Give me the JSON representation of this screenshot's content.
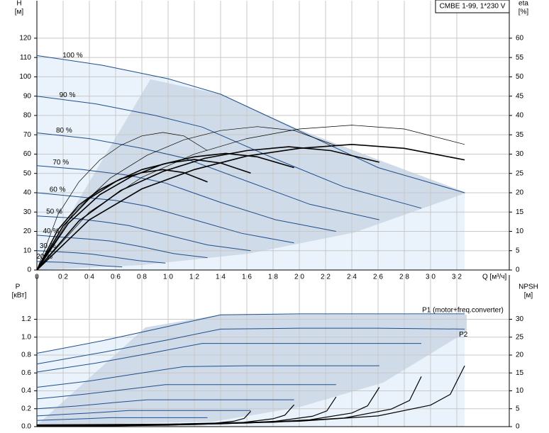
{
  "chart_data": [
    {
      "type": "line",
      "title": "CMBE 1-99, 1*230 V",
      "y_label": "H",
      "y_unit": "[м]",
      "y2_label": "eta",
      "y2_unit": "[%]",
      "x_label": "Q [м³/ч]",
      "xlim": [
        0,
        3.6
      ],
      "xticks": [
        0,
        {
          "value": 0.2,
          "label": "0,2"
        },
        {
          "value": 0.4,
          "label": "0,4"
        },
        {
          "value": 0.6,
          "label": "0,6"
        },
        {
          "value": 0.8,
          "label": "0,8"
        },
        {
          "value": 1.0,
          "label": "1,0"
        },
        {
          "value": 1.2,
          "label": "1,2"
        },
        {
          "value": 1.4,
          "label": "1,4"
        },
        {
          "value": 1.6,
          "label": "1,6"
        },
        {
          "value": 1.8,
          "label": "1,8"
        },
        {
          "value": 2.0,
          "label": "2,0"
        },
        {
          "value": 2.2,
          "label": "2,2"
        },
        {
          "value": 2.4,
          "label": "2,4"
        },
        {
          "value": 2.6,
          "label": "2,6"
        },
        {
          "value": 2.8,
          "label": "2,8"
        },
        {
          "value": 3.0,
          "label": "3,0"
        },
        {
          "value": 3.2,
          "label": "3,2"
        }
      ],
      "ylim": [
        0,
        135
      ],
      "yticks": [
        0,
        10,
        20,
        30,
        40,
        50,
        60,
        70,
        80,
        90,
        100,
        110,
        120
      ],
      "y2lim": [
        0,
        67.5
      ],
      "y2ticks": [
        0,
        5,
        10,
        15,
        20,
        25,
        30,
        35,
        40,
        45,
        50,
        55,
        60
      ],
      "grid": true,
      "series": [
        {
          "name": "100 %",
          "color": "#1f4e8c",
          "width": 1,
          "x": [
            0,
            0.5,
            1.0,
            1.4,
            2.0,
            2.6,
            3.26
          ],
          "values": [
            111,
            106,
            99,
            91,
            72,
            53,
            40
          ]
        },
        {
          "name": "90 %",
          "color": "#1f4e8c",
          "width": 1,
          "x": [
            0,
            0.45,
            0.9,
            1.26,
            1.8,
            2.34,
            2.93
          ],
          "values": [
            90,
            86,
            80,
            74,
            58,
            43,
            32
          ]
        },
        {
          "name": "80 %",
          "color": "#1f4e8c",
          "width": 1,
          "x": [
            0,
            0.4,
            0.8,
            1.12,
            1.6,
            2.08,
            2.61
          ],
          "values": [
            71,
            68,
            63,
            58,
            46,
            34,
            26
          ]
        },
        {
          "name": "70 %",
          "color": "#1f4e8c",
          "width": 1,
          "x": [
            0,
            0.35,
            0.7,
            0.98,
            1.4,
            1.82,
            2.28
          ],
          "values": [
            54,
            52,
            49,
            45,
            35,
            26,
            20
          ]
        },
        {
          "name": "60 %",
          "color": "#1f4e8c",
          "width": 1,
          "x": [
            0,
            0.3,
            0.6,
            0.84,
            1.2,
            1.56,
            1.96
          ],
          "values": [
            40,
            38,
            36,
            33,
            26,
            19,
            14
          ]
        },
        {
          "name": "50 %",
          "color": "#1f4e8c",
          "width": 1,
          "x": [
            0,
            0.25,
            0.5,
            0.7,
            1.0,
            1.3,
            1.63
          ],
          "values": [
            28,
            27,
            25,
            23,
            18,
            13,
            10
          ]
        },
        {
          "name": "40 %",
          "color": "#1f4e8c",
          "width": 1,
          "x": [
            0,
            0.2,
            0.4,
            0.56,
            0.8,
            1.04,
            1.3
          ],
          "values": [
            18,
            17,
            16,
            15,
            12,
            8.5,
            6.4
          ]
        },
        {
          "name": "30 %",
          "color": "#1f4e8c",
          "width": 1,
          "x": [
            0,
            0.15,
            0.3,
            0.42,
            0.6,
            0.78,
            0.98
          ],
          "values": [
            10,
            9.5,
            8.9,
            8.2,
            6.5,
            4.8,
            3.6
          ]
        },
        {
          "name": "20 %",
          "color": "#1f4e8c",
          "width": 1,
          "x": [
            0,
            0.1,
            0.2,
            0.28,
            0.4,
            0.52,
            0.65
          ],
          "values": [
            4.4,
            4.2,
            4.0,
            3.6,
            2.9,
            2.1,
            1.6
          ]
        },
        {
          "color": "#000000",
          "width": 0.7,
          "axis": "y2",
          "x": [
            0,
            0.4,
            0.8,
            1.2,
            1.6,
            2.0,
            2.4,
            2.8,
            3.26
          ],
          "values": [
            0,
            15,
            24,
            30,
            34,
            36.5,
            37.5,
            36.5,
            32.5
          ]
        },
        {
          "color": "#000000",
          "width": 0.7,
          "axis": "y2",
          "x": [
            0,
            0.28,
            0.56,
            0.84,
            1.12,
            1.4,
            1.68,
            1.96,
            2.28
          ],
          "values": [
            0,
            14.9,
            23.8,
            29.7,
            33.7,
            36.1,
            37.1,
            36.1,
            32.2
          ]
        },
        {
          "color": "#000000",
          "width": 0.7,
          "axis": "y2",
          "x": [
            0,
            0.16,
            0.32,
            0.48,
            0.64,
            0.8,
            0.96,
            1.12,
            1.3
          ],
          "values": [
            0,
            14.3,
            22.8,
            28.5,
            32.3,
            34.7,
            35.6,
            34.7,
            30.9
          ]
        },
        {
          "color": "#000000",
          "width": 1.6,
          "axis": "y2",
          "x": [
            0,
            0.4,
            0.8,
            1.2,
            1.6,
            2.0,
            2.4,
            2.8,
            3.26
          ],
          "values": [
            0,
            13,
            21,
            26,
            29.5,
            31.5,
            32.5,
            31.5,
            28.5
          ]
        },
        {
          "color": "#000000",
          "width": 1.6,
          "axis": "y2",
          "x": [
            0,
            0.32,
            0.64,
            0.96,
            1.28,
            1.6,
            1.92,
            2.24,
            2.61
          ],
          "values": [
            0,
            12.7,
            20.6,
            25.5,
            28.9,
            30.9,
            31.9,
            30.9,
            27.9
          ]
        },
        {
          "color": "#000000",
          "width": 1.6,
          "axis": "y2",
          "x": [
            0,
            0.24,
            0.48,
            0.72,
            0.96,
            1.2,
            1.44,
            1.68,
            1.96
          ],
          "values": [
            0,
            12.1,
            19.5,
            24.2,
            27.4,
            29.3,
            30.2,
            29.3,
            26.5
          ]
        },
        {
          "color": "#000000",
          "width": 1.6,
          "axis": "y2",
          "x": [
            0,
            0.2,
            0.4,
            0.6,
            0.8,
            1.0,
            1.2,
            1.4,
            1.63
          ],
          "values": [
            0,
            11.4,
            18.5,
            22.9,
            26,
            27.7,
            28.6,
            27.7,
            25.1
          ]
        },
        {
          "color": "#000000",
          "width": 1.6,
          "axis": "y2",
          "x": [
            0,
            0.16,
            0.32,
            0.48,
            0.64,
            0.8,
            0.96,
            1.12,
            1.3
          ],
          "values": [
            0,
            10.4,
            16.8,
            20.8,
            23.6,
            25.2,
            26,
            25.2,
            22.8
          ]
        }
      ]
    },
    {
      "type": "line",
      "y_label": "P",
      "y_unit": "[кВт]",
      "y2_label": "NPSH",
      "y2_unit": "[м]",
      "xlim": [
        0,
        3.6
      ],
      "ylim": [
        0,
        1.6
      ],
      "yticks": [
        {
          "value": 0,
          "label": "0.0"
        },
        0.2,
        0.4,
        0.6,
        0.8,
        {
          "value": 1,
          "label": "1.0"
        },
        1.2
      ],
      "y2lim": [
        0,
        40
      ],
      "y2ticks": [
        0,
        5,
        10,
        15,
        20,
        25,
        30
      ],
      "grid": true,
      "series": [
        {
          "name": "P1 (motor+freq.converter)",
          "color": "#1f4e8c",
          "width": 1,
          "x": [
            0,
            0.5,
            1.0,
            1.4,
            2.0,
            2.6,
            3.26
          ],
          "values": [
            0.82,
            0.96,
            1.12,
            1.25,
            1.26,
            1.26,
            1.26
          ]
        },
        {
          "name": "P2",
          "color": "#1f4e8c",
          "width": 1,
          "x": [
            0,
            0.5,
            1.0,
            1.4,
            2.0,
            2.6,
            3.26
          ],
          "values": [
            0.7,
            0.83,
            0.97,
            1.09,
            1.1,
            1.1,
            1.09
          ]
        },
        {
          "color": "#1f4e8c",
          "width": 1,
          "x": [
            0,
            0.45,
            0.9,
            1.26,
            1.8,
            2.34,
            2.93
          ],
          "values": [
            0.61,
            0.71,
            0.83,
            0.93,
            0.93,
            0.93,
            0.93
          ]
        },
        {
          "color": "#1f4e8c",
          "width": 1,
          "x": [
            0,
            0.4,
            0.8,
            1.12,
            1.6,
            2.08,
            2.61
          ],
          "values": [
            0.44,
            0.51,
            0.6,
            0.67,
            0.68,
            0.68,
            0.68
          ]
        },
        {
          "color": "#1f4e8c",
          "width": 1,
          "x": [
            0,
            0.35,
            0.7,
            0.98,
            1.4,
            1.82,
            2.28
          ],
          "values": [
            0.31,
            0.36,
            0.42,
            0.47,
            0.47,
            0.47,
            0.47
          ]
        },
        {
          "color": "#1f4e8c",
          "width": 1,
          "x": [
            0,
            0.3,
            0.6,
            0.84,
            1.2,
            1.56,
            1.96
          ],
          "values": [
            0.2,
            0.23,
            0.27,
            0.3,
            0.3,
            0.3,
            0.3
          ]
        },
        {
          "color": "#1f4e8c",
          "width": 1,
          "x": [
            0,
            0.25,
            0.5,
            0.7,
            1.0,
            1.3,
            1.63
          ],
          "values": [
            0.12,
            0.14,
            0.16,
            0.18,
            0.18,
            0.18,
            0.18
          ]
        },
        {
          "color": "#1f4e8c",
          "width": 1,
          "x": [
            0,
            0.2,
            0.4,
            0.56,
            0.8,
            1.04,
            1.3
          ],
          "values": [
            0.07,
            0.08,
            0.09,
            0.1,
            0.1,
            0.1,
            0.1
          ]
        },
        {
          "color": "#000000",
          "width": 1.2,
          "axis": "y2",
          "x": [
            0,
            1.0,
            2.0,
            2.6,
            3.0,
            3.15,
            3.26
          ],
          "values": [
            0.5,
            0.7,
            1.5,
            3,
            6,
            9,
            17
          ]
        },
        {
          "color": "#000000",
          "width": 1.2,
          "axis": "y2",
          "x": [
            0,
            0.9,
            1.8,
            2.34,
            2.7,
            2.84,
            2.93
          ],
          "values": [
            0.4,
            0.6,
            1.2,
            2.4,
            4.9,
            7.3,
            14
          ]
        },
        {
          "color": "#000000",
          "width": 1.2,
          "axis": "y2",
          "x": [
            0,
            0.8,
            1.6,
            2.08,
            2.4,
            2.52,
            2.61
          ],
          "values": [
            0.3,
            0.45,
            1,
            1.9,
            3.8,
            5.8,
            11
          ]
        },
        {
          "color": "#000000",
          "width": 1.2,
          "axis": "y2",
          "x": [
            0,
            0.7,
            1.4,
            1.82,
            2.1,
            2.21,
            2.28
          ],
          "values": [
            0.25,
            0.35,
            0.75,
            1.5,
            2.9,
            4.4,
            8.3
          ]
        },
        {
          "color": "#000000",
          "width": 1.2,
          "axis": "y2",
          "x": [
            0,
            0.6,
            1.2,
            1.56,
            1.8,
            1.89,
            1.96
          ],
          "values": [
            0.2,
            0.25,
            0.55,
            1.1,
            2.2,
            3.2,
            6.1
          ]
        },
        {
          "color": "#000000",
          "width": 1.2,
          "axis": "y2",
          "x": [
            0,
            0.5,
            1.0,
            1.3,
            1.5,
            1.58,
            1.63
          ],
          "values": [
            0.1,
            0.2,
            0.4,
            0.75,
            1.5,
            2.3,
            4.3
          ]
        }
      ]
    }
  ]
}
